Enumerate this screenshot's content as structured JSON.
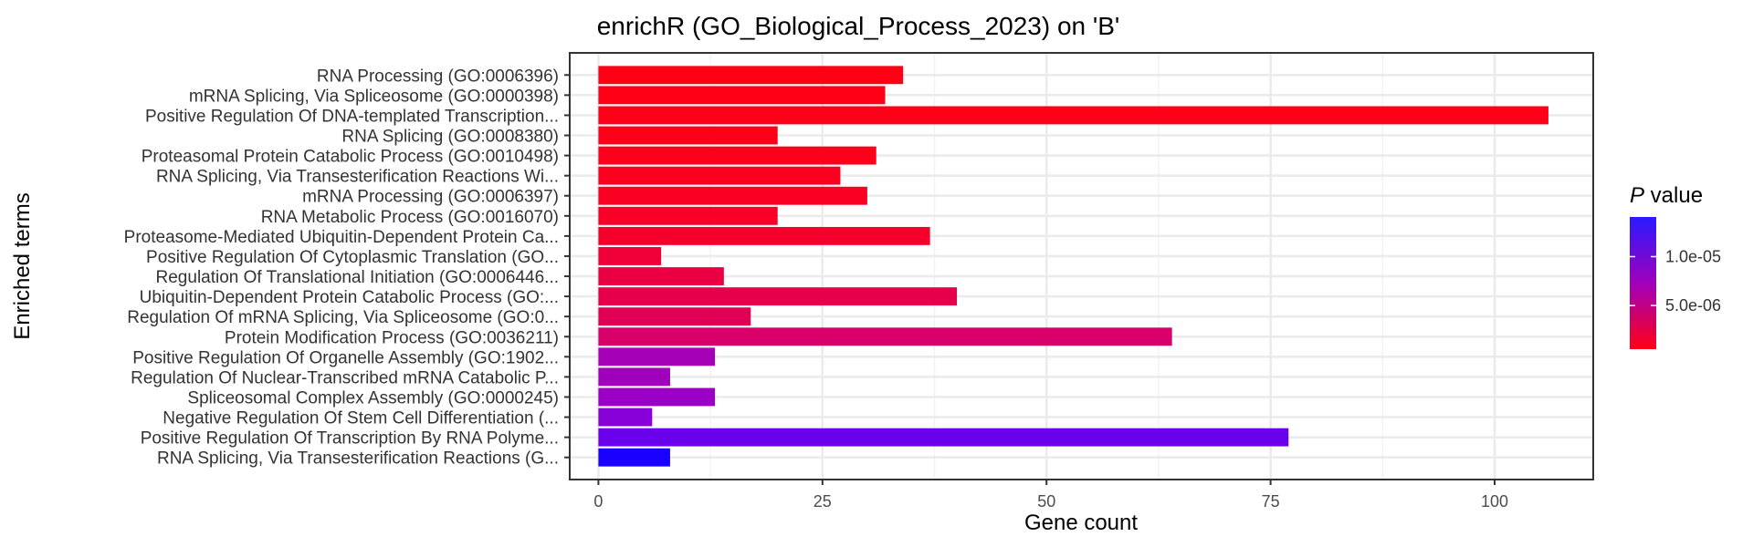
{
  "chart_data": {
    "type": "bar",
    "orientation": "horizontal",
    "title": "enrichR (GO_Biological_Process_2023) on 'B'",
    "xlabel": "Gene count",
    "ylabel": "Enriched terms",
    "xlim": [
      -3.2,
      111
    ],
    "x_ticks": [
      0,
      25,
      50,
      75,
      100
    ],
    "x_tick_labels": [
      "0",
      "25",
      "50",
      "75",
      "100"
    ],
    "grid": true,
    "categories": [
      "RNA Processing (GO:0006396)",
      "mRNA Splicing, Via Spliceosome (GO:0000398)",
      "Positive Regulation Of DNA-templated Transcription...",
      "RNA Splicing (GO:0008380)",
      "Proteasomal Protein Catabolic Process (GO:0010498)",
      "RNA Splicing, Via Transesterification Reactions Wi...",
      "mRNA Processing (GO:0006397)",
      "RNA Metabolic Process (GO:0016070)",
      "Proteasome-Mediated Ubiquitin-Dependent Protein Ca...",
      "Positive Regulation Of Cytoplasmic Translation (GO...",
      "Regulation Of Translational Initiation (GO:0006446...",
      "Ubiquitin-Dependent Protein Catabolic Process (GO:...",
      "Regulation Of mRNA Splicing, Via Spliceosome (GO:0...",
      "Protein Modification Process (GO:0036211)",
      "Positive Regulation Of Organelle Assembly (GO:1902...",
      "Regulation Of Nuclear-Transcribed mRNA Catabolic P...",
      "Spliceosomal Complex Assembly (GO:0000245)",
      "Negative Regulation Of Stem Cell Differentiation (...",
      "Positive Regulation Of Transcription By RNA Polyme...",
      "RNA Splicing, Via Transesterification Reactions (G..."
    ],
    "values": [
      34,
      32,
      106,
      20,
      31,
      27,
      30,
      20,
      37,
      7,
      14,
      40,
      17,
      64,
      13,
      8,
      13,
      6,
      77,
      8
    ],
    "bar_colors": [
      "#ff0015",
      "#ff0016",
      "#fe0018",
      "#fe001a",
      "#fd001c",
      "#fc001f",
      "#fa0022",
      "#f80027",
      "#f5002d",
      "#f00036",
      "#ea0042",
      "#e6004b",
      "#e00056",
      "#d9006a",
      "#a500b5",
      "#a000bc",
      "#9a00c5",
      "#8800d8",
      "#6b00ec",
      "#1a00fe"
    ],
    "legend": {
      "title_italic": "P",
      "title_rest": " value",
      "placement": "right",
      "gradient_top": "#2a1aff",
      "gradient_mid": "#a000bc",
      "gradient_bottom": "#ff0015",
      "ticks": [
        "1.0e-05",
        "5.0e-06"
      ],
      "tick_fractions": [
        0.7,
        0.33
      ]
    }
  }
}
